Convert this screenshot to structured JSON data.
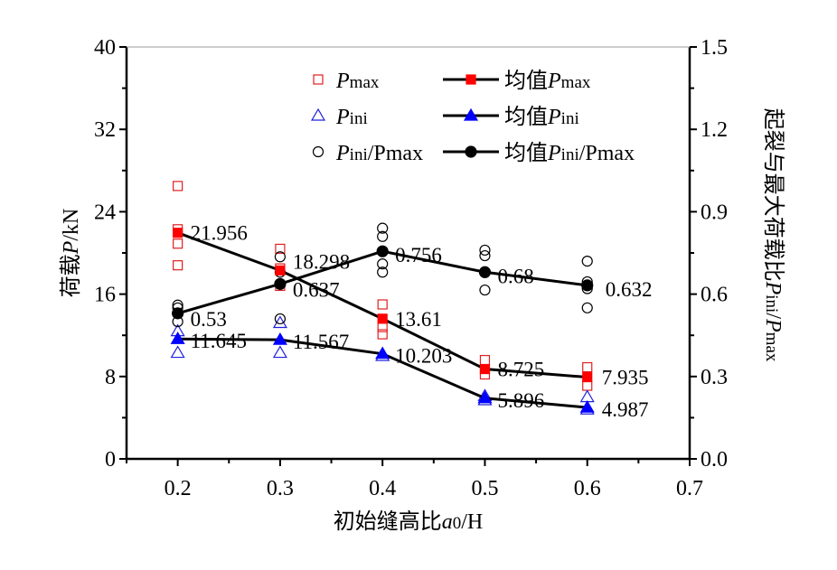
{
  "chart_data": {
    "type": "scatter",
    "xlabel": {
      "text": "初始缝高比",
      "var": "a",
      "sub": "0",
      "suffix": "/H"
    },
    "ylabel_left": {
      "text": "荷载",
      "var": "P",
      "suffix": "/kN"
    },
    "ylabel_right": {
      "text": "起裂与最大荷载比",
      "var1": "P",
      "sub1": "ini",
      "sep": "/",
      "var2": "P",
      "sub2": "max"
    },
    "xlim": [
      0.15,
      0.7
    ],
    "ylim_left": [
      0,
      40
    ],
    "ylim_right": [
      0,
      1.5
    ],
    "x_ticks": [
      "0.2",
      "0.3",
      "0.4",
      "0.5",
      "0.6",
      "0.7"
    ],
    "y_left_ticks": [
      "0",
      "8",
      "16",
      "24",
      "32",
      "40"
    ],
    "y_right_ticks": [
      "0.0",
      "0.3",
      "0.6",
      "0.9",
      "1.2",
      "1.5"
    ],
    "legend": {
      "placement": "top",
      "items": [
        {
          "prefix": "",
          "var": "P",
          "sub": "max",
          "rest": ""
        },
        {
          "prefix": "均值",
          "var": "P",
          "sub": "max",
          "rest": ""
        },
        {
          "prefix": "",
          "var": "P",
          "sub": "ini",
          "rest": ""
        },
        {
          "prefix": "均值",
          "var": "P",
          "sub": "ini",
          "rest": ""
        },
        {
          "prefix": "",
          "var": "P",
          "sub": "ini",
          "rest": "/Pmax"
        },
        {
          "prefix": "均值",
          "var": "P",
          "sub": "ini",
          "rest": "/Pmax"
        }
      ]
    },
    "x": [
      0.2,
      0.3,
      0.4,
      0.5,
      0.6
    ],
    "series": [
      {
        "name": "Pmax",
        "axis": "left",
        "marker": "square-open",
        "color": "#e02020",
        "points": [
          [
            0.2,
            26.5
          ],
          [
            0.2,
            22.3
          ],
          [
            0.2,
            20.9
          ],
          [
            0.2,
            18.8
          ],
          [
            0.3,
            20.4
          ],
          [
            0.3,
            18.5
          ],
          [
            0.3,
            16.8
          ],
          [
            0.4,
            15.0
          ],
          [
            0.4,
            12.8
          ],
          [
            0.4,
            12.1
          ],
          [
            0.5,
            9.6
          ],
          [
            0.5,
            8.2
          ],
          [
            0.6,
            8.9
          ],
          [
            0.6,
            7.1
          ]
        ]
      },
      {
        "name": "Pini",
        "axis": "left",
        "marker": "triangle-open",
        "color": "#2020e0",
        "points": [
          [
            0.2,
            12.4
          ],
          [
            0.2,
            10.3
          ],
          [
            0.3,
            13.2
          ],
          [
            0.3,
            10.3
          ],
          [
            0.4,
            10.0
          ],
          [
            0.5,
            6.1
          ],
          [
            0.5,
            5.7
          ],
          [
            0.6,
            6.0
          ],
          [
            0.6,
            4.8
          ]
        ]
      },
      {
        "name": "Pini/Pmax",
        "axis": "right",
        "marker": "circle-open",
        "color": "#000000",
        "points": [
          [
            0.2,
            0.56
          ],
          [
            0.2,
            0.55
          ],
          [
            0.2,
            0.5
          ],
          [
            0.3,
            0.736
          ],
          [
            0.3,
            0.68
          ],
          [
            0.3,
            0.51
          ],
          [
            0.4,
            0.84
          ],
          [
            0.4,
            0.81
          ],
          [
            0.4,
            0.71
          ],
          [
            0.4,
            0.68
          ],
          [
            0.5,
            0.76
          ],
          [
            0.5,
            0.74
          ],
          [
            0.5,
            0.615
          ],
          [
            0.6,
            0.72
          ],
          [
            0.6,
            0.645
          ],
          [
            0.6,
            0.62
          ],
          [
            0.6,
            0.55
          ]
        ]
      },
      {
        "name": "均值Pmax",
        "axis": "left",
        "marker": "square-filled",
        "color": "#ff0000",
        "values": [
          21.956,
          18.298,
          13.61,
          8.725,
          7.935
        ],
        "labels": [
          "21.956",
          "18.298",
          "13.61",
          "8.725",
          "7.935"
        ]
      },
      {
        "name": "均值Pini",
        "axis": "left",
        "marker": "triangle-filled",
        "color": "#0000ff",
        "values": [
          11.645,
          11.567,
          10.203,
          5.896,
          4.987
        ],
        "labels": [
          "11.645",
          "11.567",
          "10.203",
          "5.896",
          "4.987"
        ]
      },
      {
        "name": "均值Pini/Pmax",
        "axis": "right",
        "marker": "circle-filled",
        "color": "#000000",
        "values": [
          0.53,
          0.637,
          0.756,
          0.68,
          0.632
        ],
        "labels": [
          "0.53",
          "0.637",
          "0.756",
          "0.68",
          "0.632"
        ]
      }
    ]
  }
}
